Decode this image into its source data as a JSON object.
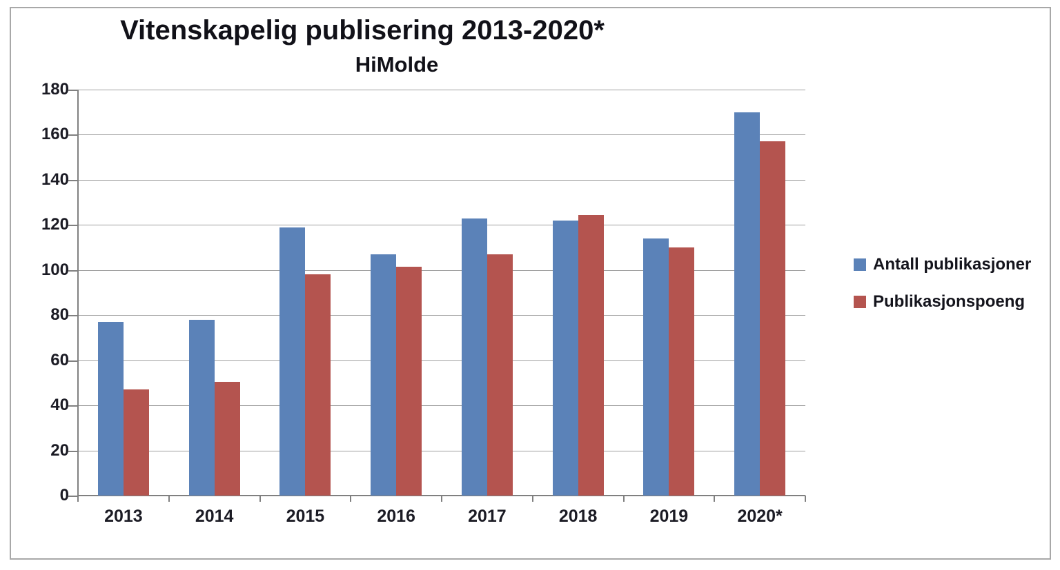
{
  "chart_data": {
    "type": "bar",
    "title": "Vitenskapelig publisering 2013-2020*",
    "subtitle": "HiMolde",
    "categories": [
      "2013",
      "2014",
      "2015",
      "2016",
      "2017",
      "2018",
      "2019",
      "2020*"
    ],
    "series": [
      {
        "name": "Antall publikasjoner",
        "color": "#5B82B8",
        "values": [
          77,
          78,
          119,
          107,
          123,
          122,
          114,
          170
        ]
      },
      {
        "name": "Publikasjonspoeng",
        "color": "#B4544F",
        "values": [
          47,
          50.5,
          98,
          101.5,
          107,
          124.5,
          110,
          157
        ]
      }
    ],
    "xlabel": "",
    "ylabel": "",
    "ylim": [
      0,
      180
    ],
    "y_ticks": [
      0,
      20,
      40,
      60,
      80,
      100,
      120,
      140,
      160,
      180
    ],
    "grid": true,
    "legend_position": "right"
  },
  "colors": {
    "grid": "#9e9e9e",
    "axis": "#808080",
    "frame_border": "#a8a8a8",
    "text": "#17171f",
    "background": "#ffffff"
  }
}
